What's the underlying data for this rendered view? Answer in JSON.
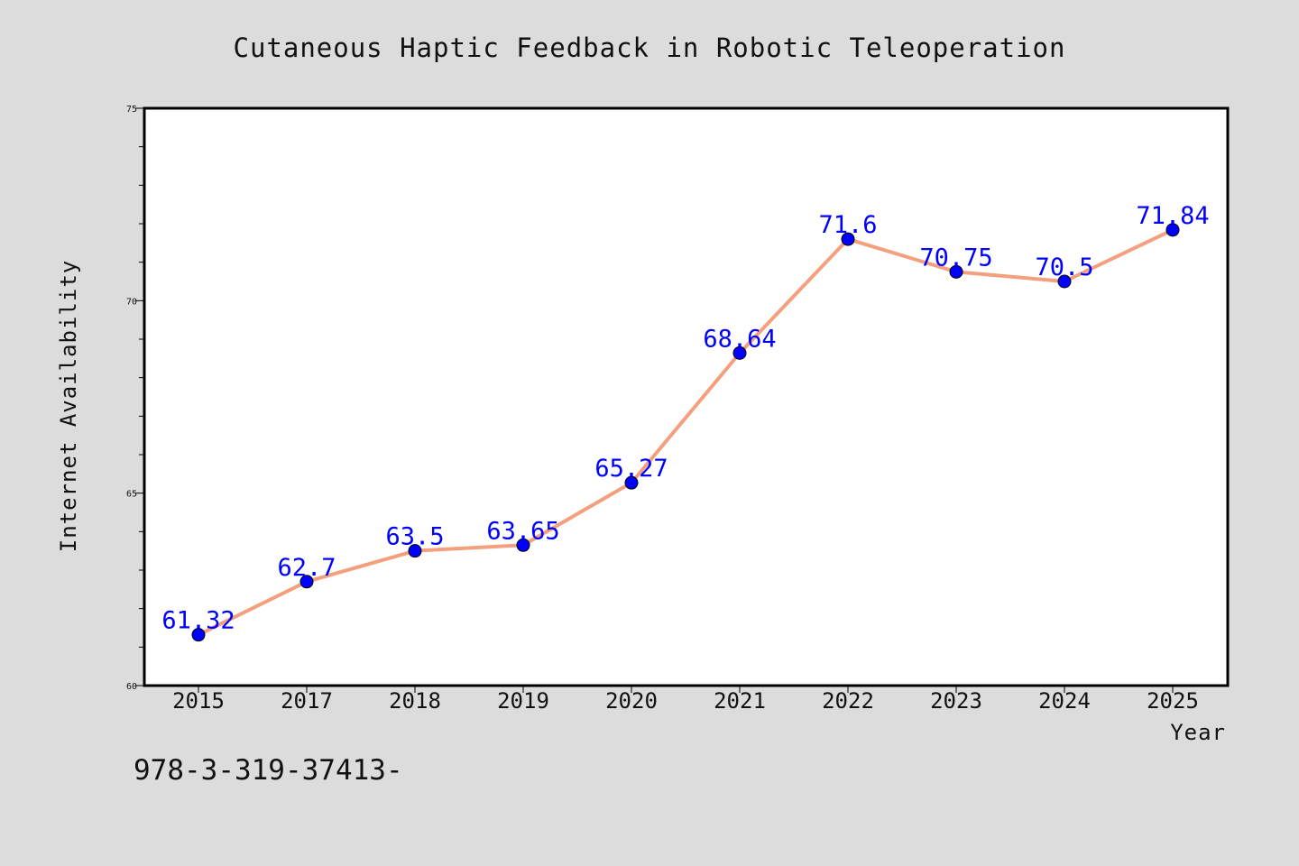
{
  "chart_data": {
    "type": "line",
    "title": "Cutaneous Haptic Feedback in Robotic Teleoperation",
    "xlabel": "Year",
    "ylabel": "Internet Availability",
    "categories": [
      "2015",
      "2017",
      "2018",
      "2019",
      "2020",
      "2021",
      "2022",
      "2023",
      "2024",
      "2025"
    ],
    "series": [
      {
        "values": [
          61.32,
          62.7,
          63.5,
          63.65,
          65.27,
          68.64,
          71.6,
          70.75,
          70.5,
          71.84
        ],
        "labels": [
          "61.32",
          "62.7",
          "63.5",
          "63.65",
          "65.27",
          "68.64",
          "71.6",
          "70.75",
          "70.5",
          "71.84"
        ]
      }
    ],
    "ylim": [
      60,
      75
    ],
    "yticks": [
      "60",
      "65",
      "70",
      "75"
    ],
    "grid": false,
    "legend": "none",
    "colors": {
      "line": "#f4a07e",
      "marker": "#0000ff",
      "label": "#0000ff",
      "plot_bg": "#ffffff",
      "page_bg": "#dcdcdc"
    }
  },
  "footer_text": "978-3-319-37413-"
}
